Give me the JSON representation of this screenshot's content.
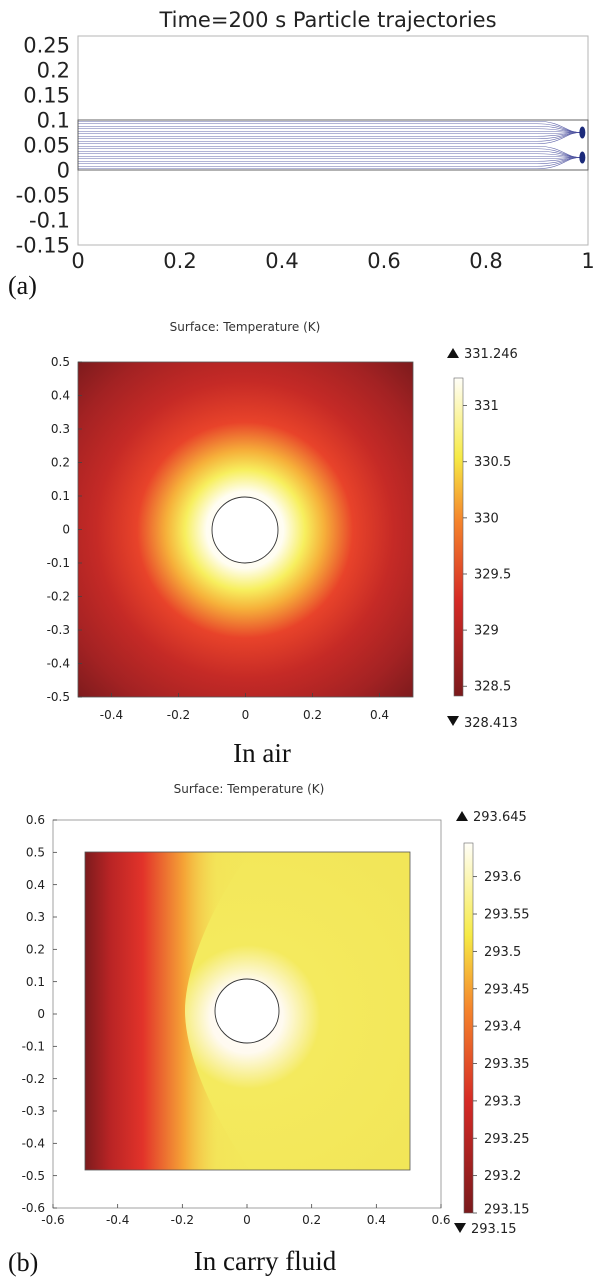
{
  "figure": {
    "panel_a_label": "(a)",
    "panel_b_label": "(b)",
    "caption_air": "In air",
    "caption_fluid": "In carry fluid"
  },
  "chart_data": [
    {
      "id": "trajectories",
      "type": "line",
      "title": "Time=200 s  Particle trajectories",
      "xlim": [
        0,
        1
      ],
      "ylim": [
        -0.15,
        0.25
      ],
      "x_ticks": [
        "0",
        "0.2",
        "0.4",
        "0.6",
        "0.8",
        "1"
      ],
      "y_ticks": [
        "0.25",
        "0.2",
        "0.15",
        "0.1",
        "0.05",
        "0",
        "-0.05",
        "-0.1",
        "-0.15"
      ],
      "channel": {
        "x": [
          0,
          1
        ],
        "y": [
          0,
          0.1
        ]
      },
      "trajectories": {
        "count": 20,
        "y_start": 0.0,
        "y_end": 0.1,
        "x_converge_start": 0.9,
        "x_end": 0.985,
        "targets_y": [
          0.025,
          0.075
        ]
      },
      "line_color": "#4a4f9e",
      "grid": false
    },
    {
      "id": "temperature_air",
      "type": "heatmap",
      "title": "Surface: Temperature (K)",
      "xlim": [
        -0.5,
        0.5
      ],
      "ylim": [
        -0.5,
        0.5
      ],
      "x_ticks": [
        "-0.4",
        "-0.2",
        "0",
        "0.2",
        "0.4"
      ],
      "y_ticks": [
        "0.5",
        "0.4",
        "0.3",
        "0.2",
        "0.1",
        "0",
        "-0.1",
        "-0.2",
        "-0.3",
        "-0.4",
        "-0.5"
      ],
      "circle": {
        "cx": 0,
        "cy": 0,
        "r": 0.1
      },
      "colorbar": {
        "max_label": "331.246",
        "min_label": "328.413",
        "ticks": [
          "331",
          "330.5",
          "330",
          "329.5",
          "329",
          "328.5"
        ],
        "min": 328.413,
        "max": 331.246
      },
      "field": "radial: hottest (331.246 K) at the circular source, decreasing to 328.413 K at the corners",
      "grid": false
    },
    {
      "id": "temperature_fluid",
      "type": "heatmap",
      "title": "Surface: Temperature (K)",
      "xlim": [
        -0.6,
        0.6
      ],
      "ylim": [
        -0.6,
        0.6
      ],
      "domain_xlim": [
        -0.5,
        0.5
      ],
      "domain_ylim": [
        -0.5,
        0.5
      ],
      "x_ticks": [
        "-0.6",
        "-0.4",
        "-0.2",
        "0",
        "0.2",
        "0.4",
        "0.6"
      ],
      "y_ticks": [
        "0.6",
        "0.5",
        "0.4",
        "0.3",
        "0.2",
        "0.1",
        "0",
        "-0.1",
        "-0.2",
        "-0.3",
        "-0.4",
        "-0.5",
        "-0.6"
      ],
      "circle": {
        "cx": 0,
        "cy": 0,
        "r": 0.1
      },
      "colorbar": {
        "max_label": "293.645",
        "min_label": "293.15",
        "ticks": [
          "293.6",
          "293.55",
          "293.5",
          "293.45",
          "293.4",
          "293.35",
          "293.3",
          "293.25",
          "293.2",
          "293.15"
        ],
        "min": 293.15,
        "max": 293.645
      },
      "field": "advected plume: cold inflow (293.15 K) on the left edge, warm wake (~293.45 K) downstream to the right of the circular source",
      "grid": false
    }
  ]
}
